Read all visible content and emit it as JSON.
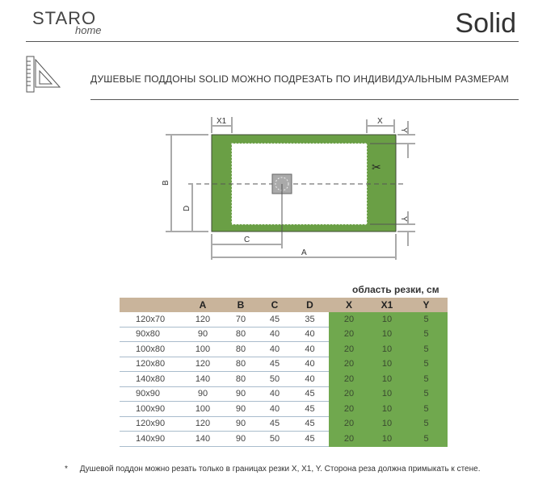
{
  "logo": {
    "main": "STARO",
    "sub": "home"
  },
  "brand_title": "Solid",
  "heading": "ДУШЕВЫЕ ПОДДОНЫ SOLID МОЖНО ПОДРЕЗАТЬ ПО ИНДИВИДУАЛЬНЫМ РАЗМЕРАМ",
  "diagram": {
    "labels": {
      "x1": "X1",
      "x": "X",
      "y": "Y",
      "b": "B",
      "d": "D",
      "c": "C",
      "a": "A"
    },
    "tray_color": "#6a9f45"
  },
  "table": {
    "caption": "область резки, см",
    "headers": [
      "",
      "A",
      "B",
      "C",
      "D",
      "X",
      "X1",
      "Y"
    ],
    "rows": [
      [
        "120x70",
        "120",
        "70",
        "45",
        "35",
        "20",
        "10",
        "5"
      ],
      [
        "90x80",
        "90",
        "80",
        "40",
        "40",
        "20",
        "10",
        "5"
      ],
      [
        "100x80",
        "100",
        "80",
        "40",
        "40",
        "20",
        "10",
        "5"
      ],
      [
        "120x80",
        "120",
        "80",
        "45",
        "40",
        "20",
        "10",
        "5"
      ],
      [
        "140x80",
        "140",
        "80",
        "50",
        "40",
        "20",
        "10",
        "5"
      ],
      [
        "90x90",
        "90",
        "90",
        "40",
        "45",
        "20",
        "10",
        "5"
      ],
      [
        "100x90",
        "100",
        "90",
        "40",
        "45",
        "20",
        "10",
        "5"
      ],
      [
        "120x90",
        "120",
        "90",
        "45",
        "45",
        "20",
        "10",
        "5"
      ],
      [
        "140x90",
        "140",
        "90",
        "50",
        "45",
        "20",
        "10",
        "5"
      ]
    ],
    "header_color": "#c9b49b",
    "cut_color": "#70a84e"
  },
  "footnote": {
    "star": "*",
    "text": "Душевой поддон можно резать только в границах резки X, X1, Y. Сторона реза должна примыкать к стене."
  }
}
